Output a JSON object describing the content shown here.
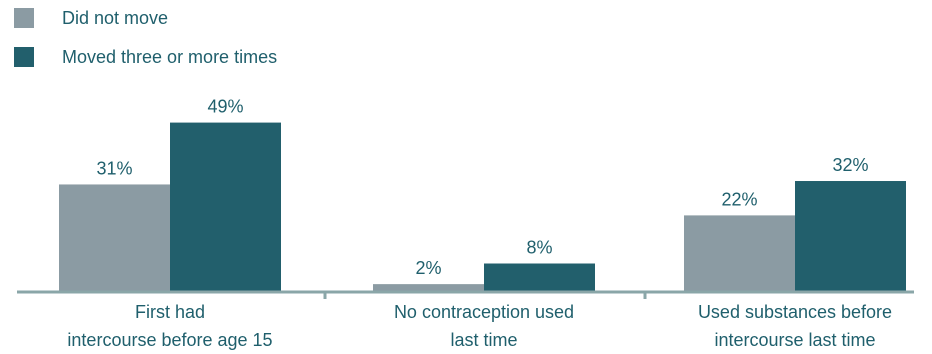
{
  "chart_data": {
    "type": "bar",
    "title": "",
    "xlabel": "",
    "ylabel": "",
    "ylim": [
      0,
      49
    ],
    "grid": false,
    "legend_placement": "top-left",
    "categories": [
      [
        "First had",
        "intercourse before age 15"
      ],
      [
        "No contraception used",
        "last time"
      ],
      [
        "Used substances before",
        "intercourse last time"
      ]
    ],
    "series": [
      {
        "name": "Did not move",
        "values": [
          31,
          2,
          22
        ],
        "labels": [
          "31%",
          "2%",
          "22%"
        ],
        "color": "#8b9ba3"
      },
      {
        "name": "Moved three or more times",
        "values": [
          49,
          8,
          32
        ],
        "labels": [
          "49%",
          "8%",
          "32%"
        ],
        "color": "#225f6c"
      }
    ]
  },
  "colors": {
    "axis": "#8aa6a8",
    "label_text": "#1f5f6c"
  }
}
